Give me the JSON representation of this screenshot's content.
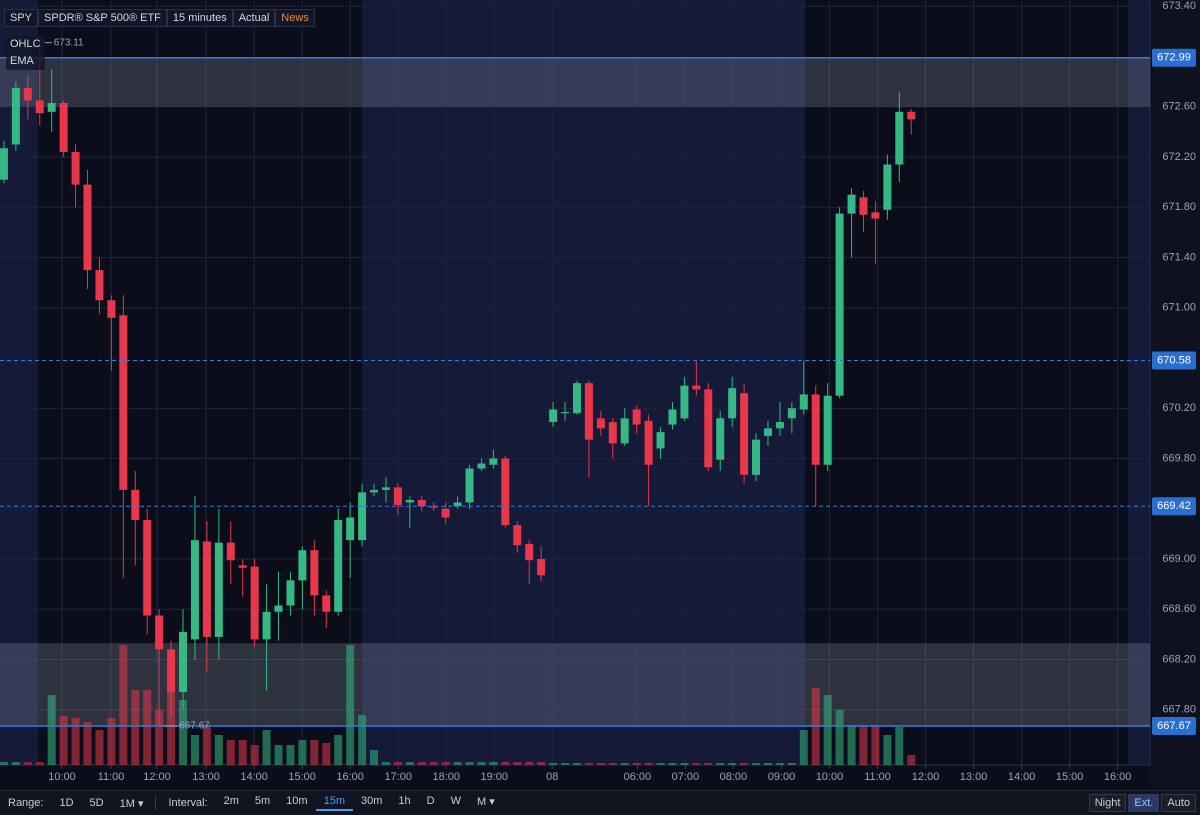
{
  "header": {
    "symbol": "SPY",
    "name": "SPDR® S&P 500® ETF",
    "interval": "15 minutes",
    "mode": "Actual",
    "news": "News"
  },
  "indicators": [
    "OHLC",
    "EMA"
  ],
  "toolbar": {
    "range_label": "Range:",
    "ranges": [
      "1D",
      "5D",
      "1M ▾"
    ],
    "interval_label": "Interval:",
    "intervals": [
      "2m",
      "5m",
      "10m",
      "15m",
      "30m",
      "1h",
      "D",
      "W",
      "M ▾"
    ],
    "active_interval": 3,
    "session": [
      "Night",
      "Ext.",
      "Auto"
    ],
    "active_session": 1
  },
  "chart_data": {
    "type": "candlestick",
    "up_color": "#35b884",
    "down_color": "#e8364a",
    "open": [
      672.02,
      672.3,
      672.75,
      672.65,
      672.56,
      672.63,
      672.24,
      671.98,
      671.3,
      671.06,
      670.94,
      669.55,
      669.31,
      668.55,
      668.28,
      667.94,
      668.36,
      669.14,
      668.38,
      669.13,
      668.95,
      668.94,
      668.36,
      668.58,
      668.63,
      668.83,
      669.07,
      668.71,
      668.58,
      669.15,
      669.15,
      669.53,
      669.55,
      669.57,
      669.45,
      669.47,
      669.42,
      669.4,
      669.42,
      669.45,
      669.72,
      669.75,
      669.8,
      669.27,
      669.12,
      669.0,
      670.09,
      670.16,
      670.16,
      670.4,
      670.12,
      670.09,
      669.92,
      670.19,
      670.1,
      669.88,
      670.07,
      670.12,
      670.38,
      670.35,
      669.79,
      670.12,
      670.32,
      669.67,
      669.98,
      670.04,
      670.12,
      670.19,
      670.31,
      669.75,
      670.3,
      671.75,
      671.88,
      671.76,
      671.78,
      672.14,
      672.56
    ],
    "high": [
      672.33,
      672.8,
      672.85,
      673.11,
      672.9,
      672.65,
      672.3,
      672.1,
      671.4,
      671.1,
      671.1,
      669.7,
      669.4,
      668.6,
      668.35,
      668.6,
      669.5,
      669.3,
      669.4,
      669.3,
      669.0,
      669.0,
      668.8,
      668.9,
      668.9,
      669.1,
      669.15,
      668.75,
      669.4,
      669.45,
      669.6,
      669.6,
      669.65,
      669.6,
      669.5,
      669.5,
      669.45,
      669.45,
      669.5,
      669.75,
      669.8,
      669.87,
      669.82,
      669.3,
      669.15,
      669.1,
      670.25,
      670.25,
      670.42,
      670.42,
      670.18,
      670.12,
      670.2,
      670.22,
      670.15,
      670.05,
      670.25,
      670.45,
      670.58,
      670.4,
      670.18,
      670.45,
      670.4,
      670.0,
      670.1,
      670.25,
      670.25,
      670.58,
      670.38,
      670.4,
      671.8,
      671.95,
      671.93,
      671.85,
      672.22,
      672.72,
      672.58
    ],
    "low": [
      671.99,
      672.25,
      672.5,
      672.45,
      672.4,
      672.2,
      671.8,
      671.15,
      670.95,
      670.5,
      668.85,
      668.95,
      668.4,
      667.67,
      667.75,
      667.8,
      668.2,
      668.1,
      668.2,
      668.8,
      668.7,
      668.3,
      667.95,
      668.35,
      668.55,
      668.6,
      668.55,
      668.45,
      668.55,
      668.85,
      669.1,
      669.5,
      669.45,
      669.35,
      669.25,
      669.38,
      669.38,
      669.28,
      669.4,
      669.4,
      669.7,
      669.72,
      669.25,
      669.05,
      668.8,
      668.82,
      670.05,
      670.1,
      670.15,
      669.65,
      669.98,
      669.8,
      669.9,
      670.0,
      669.42,
      669.8,
      670.03,
      670.1,
      670.3,
      669.7,
      669.7,
      670.05,
      669.6,
      669.62,
      669.9,
      669.98,
      670.0,
      670.15,
      669.42,
      669.7,
      670.28,
      671.4,
      671.6,
      671.35,
      671.7,
      672.0,
      672.38
    ],
    "close": [
      672.27,
      672.75,
      672.65,
      672.55,
      672.63,
      672.24,
      671.98,
      671.3,
      671.06,
      670.92,
      669.55,
      669.31,
      668.55,
      668.28,
      667.94,
      668.42,
      669.15,
      668.38,
      669.13,
      668.99,
      668.93,
      668.36,
      668.58,
      668.63,
      668.83,
      669.07,
      668.71,
      668.58,
      669.31,
      669.33,
      669.53,
      669.55,
      669.57,
      669.43,
      669.47,
      669.42,
      669.41,
      669.33,
      669.45,
      669.72,
      669.76,
      669.8,
      669.27,
      669.11,
      668.99,
      668.87,
      670.19,
      670.17,
      670.4,
      669.95,
      670.04,
      669.92,
      670.12,
      670.07,
      669.75,
      670.01,
      670.19,
      670.38,
      670.35,
      669.73,
      670.12,
      670.36,
      669.67,
      669.95,
      670.04,
      670.09,
      670.2,
      670.31,
      669.75,
      670.3,
      671.75,
      671.9,
      671.74,
      671.71,
      672.14,
      672.56,
      672.5
    ],
    "volume": [
      3,
      3,
      3,
      3,
      70,
      49,
      47,
      43,
      35,
      47,
      120,
      75,
      75,
      55,
      80,
      65,
      30,
      40,
      30,
      25,
      25,
      20,
      35,
      20,
      20,
      25,
      25,
      22,
      30,
      120,
      50,
      15,
      3,
      3,
      3,
      3,
      3,
      3,
      3,
      3,
      3,
      3,
      3,
      3,
      3,
      3,
      2,
      2,
      2,
      2,
      2,
      2,
      2,
      2,
      2,
      2,
      2,
      2,
      2,
      2,
      2,
      2,
      2,
      2,
      2,
      2,
      2,
      35,
      77,
      70,
      55,
      40,
      40,
      40,
      30,
      38,
      10
    ],
    "ylim": [
      667.36,
      673.45
    ],
    "yticks": [
      {
        "value": 673.4,
        "label": "673.40"
      },
      {
        "value": 672.6,
        "label": "672.60"
      },
      {
        "value": 672.2,
        "label": "672.20"
      },
      {
        "value": 671.8,
        "label": "671.80"
      },
      {
        "value": 671.4,
        "label": "671.40"
      },
      {
        "value": 671.0,
        "label": "671.00"
      },
      {
        "value": 670.2,
        "label": "670.20"
      },
      {
        "value": 669.8,
        "label": "669.80"
      },
      {
        "value": 669.0,
        "label": "669.00"
      },
      {
        "value": 668.6,
        "label": "668.60"
      },
      {
        "value": 668.2,
        "label": "668.20"
      },
      {
        "value": 667.8,
        "label": "667.80"
      }
    ],
    "xlim": [
      -0.33,
      96
    ],
    "xticks": [
      {
        "value": 4.86,
        "label": "10:00"
      },
      {
        "value": 8.97,
        "label": "11:00"
      },
      {
        "value": 12.82,
        "label": "12:00"
      },
      {
        "value": 16.93,
        "label": "13:00"
      },
      {
        "value": 20.96,
        "label": "14:00"
      },
      {
        "value": 24.98,
        "label": "15:00"
      },
      {
        "value": 29.0,
        "label": "16:00"
      },
      {
        "value": 33.03,
        "label": "17:00"
      },
      {
        "value": 37.05,
        "label": "18:00"
      },
      {
        "value": 41.07,
        "label": "19:00"
      },
      {
        "value": 45.93,
        "label": "08"
      },
      {
        "value": 53.06,
        "label": "06:00"
      },
      {
        "value": 57.08,
        "label": "07:00"
      },
      {
        "value": 61.1,
        "label": "08:00"
      },
      {
        "value": 65.13,
        "label": "09:00"
      },
      {
        "value": 69.15,
        "label": "10:00"
      },
      {
        "value": 73.18,
        "label": "11:00"
      },
      {
        "value": 77.2,
        "label": "12:00"
      },
      {
        "value": 81.22,
        "label": "13:00"
      },
      {
        "value": 85.25,
        "label": "14:00"
      },
      {
        "value": 89.27,
        "label": "15:00"
      },
      {
        "value": 93.29,
        "label": "16:00"
      }
    ],
    "grid": true,
    "levels": [
      {
        "value": 672.99,
        "style": "solid"
      },
      {
        "value": 670.58,
        "style": "dashed"
      },
      {
        "value": 669.42,
        "style": "dashed"
      },
      {
        "value": 667.67,
        "style": "solid"
      }
    ],
    "level_color": "#2f7de1",
    "zones": [
      {
        "from": 672.6,
        "to": 672.99
      },
      {
        "from": 667.67,
        "to": 668.33
      }
    ],
    "high_marker": 673.11,
    "low_marker": 667.67
  }
}
